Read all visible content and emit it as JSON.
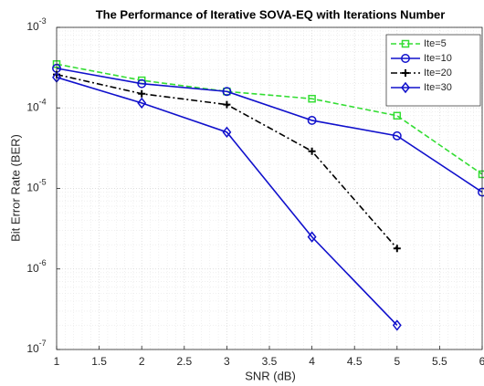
{
  "chart_data": {
    "type": "line",
    "title": "The Performance of Iterative SOVA-EQ with Iterations Number",
    "x_label": "SNR (dB)",
    "y_label": "Bit Error Rate (BER)",
    "x": [
      1,
      2,
      3,
      4,
      5,
      6
    ],
    "series": [
      {
        "name": "Ite=5",
        "color": "#33dd33",
        "linestyle": "--",
        "marker": "s",
        "values": [
          0.00035,
          0.00022,
          0.00016,
          0.00013,
          8e-05,
          1.5e-05
        ]
      },
      {
        "name": "Ite=10",
        "color": "#1010cc",
        "linestyle": "-",
        "marker": "o",
        "values": [
          0.00031,
          0.0002,
          0.00016,
          7e-05,
          4.5e-05,
          9e-06
        ]
      },
      {
        "name": "Ite=20",
        "color": "#000000",
        "linestyle": "-.",
        "marker": "+",
        "values": [
          0.00026,
          0.00015,
          0.00011,
          2.9e-05,
          1.8e-06,
          null
        ]
      },
      {
        "name": "Ite=30",
        "color": "#1010cc",
        "linestyle": "-",
        "marker": "d",
        "values": [
          0.00024,
          0.000115,
          5e-05,
          2.5e-06,
          2e-07,
          null
        ]
      }
    ],
    "xlim": [
      1,
      6
    ],
    "xticks": [
      1,
      1.5,
      2,
      2.5,
      3,
      3.5,
      4,
      4.5,
      5,
      5.5,
      6
    ],
    "ylim": [
      1e-07,
      0.001
    ],
    "yscale": "log",
    "yticks": [
      {
        "value": 1e-07,
        "label": "10-7"
      },
      {
        "value": 1e-06,
        "label": "10-6"
      },
      {
        "value": 1e-05,
        "label": "10-5"
      },
      {
        "value": 0.0001,
        "label": "10-4"
      },
      {
        "value": 0.001,
        "label": "10-3"
      }
    ],
    "grid": true,
    "minor_grid": true,
    "legend": "top-right"
  }
}
